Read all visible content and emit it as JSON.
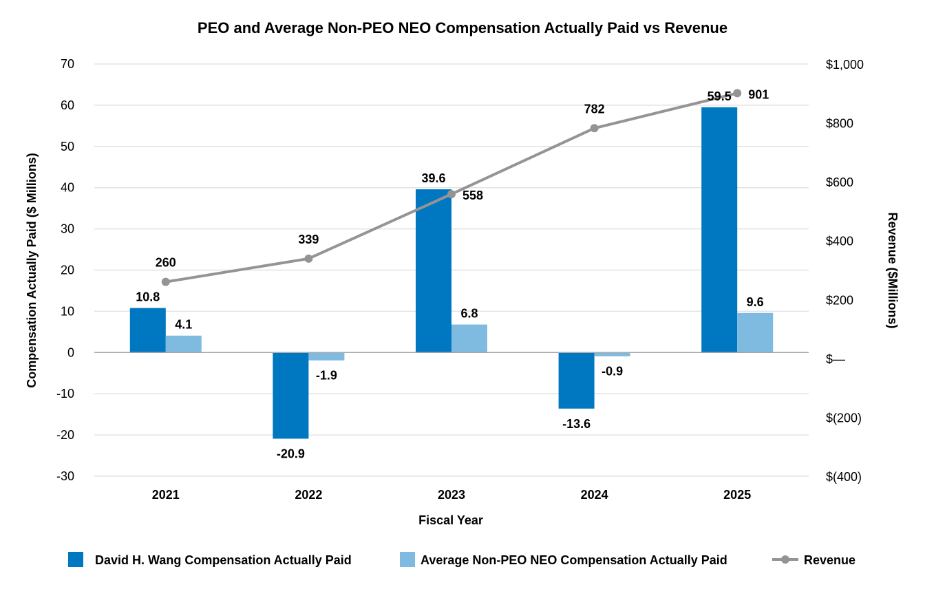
{
  "chart_data": {
    "type": "bar",
    "title": "PEO and Average Non-PEO NEO Compensation Actually Paid vs Revenue",
    "xlabel": "Fiscal Year",
    "ylabel": "Compensation Actually Paid ($ Millions)",
    "y2label": "Revenue ($Millions)",
    "categories": [
      "2021",
      "2022",
      "2023",
      "2024",
      "2025"
    ],
    "ylim": [
      -30,
      70
    ],
    "yticks": [
      "-30",
      "-20",
      "-10",
      "0",
      "10",
      "20",
      "30",
      "40",
      "50",
      "60",
      "70"
    ],
    "y2lim": [
      -400,
      1000
    ],
    "y2ticks": [
      "$(400)",
      "$(200)",
      "$—",
      "$200",
      "$400",
      "$600",
      "$800",
      "$1,000"
    ],
    "grid": true,
    "legend_position": "bottom",
    "series": [
      {
        "name": "David H. Wang Compensation Actually Paid",
        "type": "bar",
        "axis": "left",
        "color": "#0077C1",
        "values": [
          10.8,
          -20.9,
          39.6,
          -13.6,
          59.5
        ],
        "labels": [
          "10.8",
          "-20.9",
          "39.6",
          "-13.6",
          "59.5"
        ]
      },
      {
        "name": "Average Non-PEO NEO Compensation Actually Paid",
        "type": "bar",
        "axis": "left",
        "color": "#7FBBE0",
        "values": [
          4.1,
          -1.9,
          6.8,
          -0.9,
          9.6
        ],
        "labels": [
          "4.1",
          "-1.9",
          "6.8",
          "-0.9",
          "9.6"
        ]
      },
      {
        "name": "Revenue",
        "type": "line",
        "axis": "right",
        "color": "#949494",
        "values": [
          260,
          339,
          558,
          782,
          901
        ],
        "labels": [
          "260",
          "339",
          "558",
          "782",
          "901"
        ]
      }
    ]
  }
}
